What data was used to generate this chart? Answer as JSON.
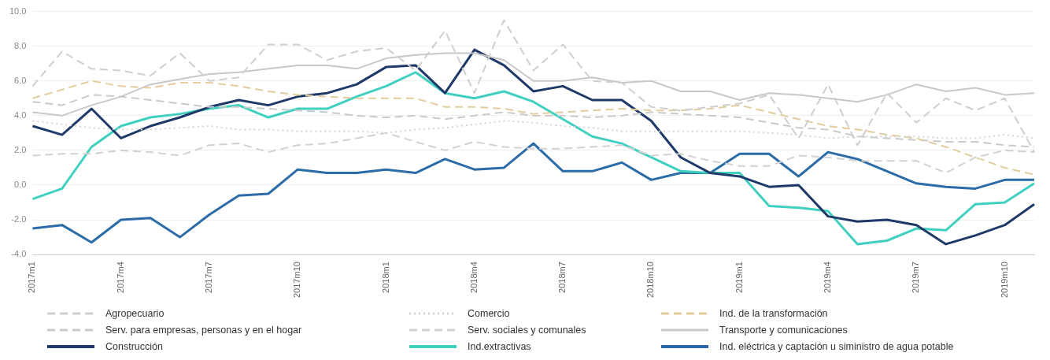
{
  "chart_data": {
    "type": "line",
    "categories": [
      "2017m1",
      null,
      null,
      "2017m4",
      null,
      null,
      "2017m7",
      null,
      null,
      "2017m10",
      null,
      null,
      "2018m1",
      null,
      null,
      "2018m4",
      null,
      null,
      "2018m7",
      null,
      null,
      "2018m10",
      null,
      null,
      "2019m1",
      null,
      null,
      "2019m4",
      null,
      null,
      "2019m7",
      null,
      null,
      "2019m10",
      null
    ],
    "ylim": [
      -4,
      10
    ],
    "yticks": [
      {
        "value": -4,
        "label": "-4.0"
      },
      {
        "value": -2,
        "label": "-2.0"
      },
      {
        "value": 0,
        "label": "0.0"
      },
      {
        "value": 2,
        "label": "2.0"
      },
      {
        "value": 4,
        "label": "4.0"
      },
      {
        "value": 6,
        "label": "6.0"
      },
      {
        "value": 8,
        "label": "8.0"
      },
      {
        "value": 10,
        "label": "10.0"
      }
    ],
    "grid": "y",
    "legend": "bottom",
    "marker": "none",
    "series": [
      {
        "name": "Agropecuario",
        "color": "#cfcfcf",
        "line_style": "dashed",
        "values": [
          5.7,
          7.7,
          6.7,
          6.6,
          6.3,
          7.6,
          6.0,
          6.2,
          8.1,
          8.1,
          7.2,
          7.7,
          7.9,
          6.6,
          8.9,
          5.3,
          9.5,
          6.6,
          8.1,
          6.0,
          5.9,
          4.5,
          4.3,
          4.5,
          4.7,
          5.2,
          2.7,
          5.8,
          2.3,
          5.3,
          3.6,
          5.0,
          4.3,
          5.0,
          1.9
        ]
      },
      {
        "name": "Comercio",
        "color": "#d4d4dc",
        "line_style": "dotted",
        "values": [
          3.7,
          3.5,
          3.3,
          3.2,
          3.2,
          3.3,
          3.4,
          3.2,
          3.2,
          3.1,
          3.1,
          3.1,
          3.0,
          3.2,
          3.3,
          3.5,
          3.7,
          3.6,
          3.4,
          3.3,
          3.1,
          3.1,
          3.1,
          3.1,
          3.1,
          3.0,
          2.9,
          2.7,
          2.8,
          2.8,
          2.8,
          2.7,
          2.7,
          2.9,
          2.7
        ]
      },
      {
        "name": "Ind. de la transformación",
        "color": "#e3cc9e",
        "line_style": "dashed",
        "values": [
          5.0,
          5.5,
          6.0,
          5.7,
          5.6,
          5.9,
          5.9,
          5.7,
          5.4,
          5.2,
          5.1,
          5.0,
          5.0,
          5.0,
          4.5,
          4.5,
          4.4,
          4.1,
          4.2,
          4.3,
          4.4,
          4.3,
          4.3,
          4.4,
          4.6,
          4.2,
          3.8,
          3.4,
          3.2,
          2.9,
          2.7,
          2.2,
          1.6,
          1.0,
          0.6
        ]
      },
      {
        "name": "Serv. para empresas, personas y en el hogar",
        "color": "#cacaca",
        "line_style": "dashed",
        "values": [
          4.8,
          4.6,
          5.2,
          5.1,
          4.9,
          4.7,
          4.5,
          4.5,
          4.4,
          4.3,
          4.2,
          4.0,
          3.9,
          4.0,
          3.8,
          4.0,
          4.2,
          4.0,
          4.0,
          3.9,
          4.0,
          4.2,
          4.1,
          4.0,
          3.9,
          3.6,
          3.3,
          3.2,
          2.8,
          2.7,
          2.6,
          2.5,
          2.5,
          2.3,
          2.2
        ]
      },
      {
        "name": "Serv. sociales y comunales",
        "color": "#d2d2d2",
        "line_style": "dashed",
        "values": [
          1.7,
          1.8,
          1.8,
          2.0,
          1.9,
          1.7,
          2.3,
          2.4,
          1.9,
          2.3,
          2.4,
          2.7,
          3.0,
          2.5,
          2.0,
          2.5,
          2.2,
          2.1,
          2.1,
          2.2,
          2.3,
          1.7,
          1.8,
          1.4,
          1.1,
          1.1,
          1.7,
          1.6,
          1.4,
          1.4,
          1.4,
          0.7,
          1.6,
          2.0,
          1.9
        ]
      },
      {
        "name": "Transporte y comunicaciones",
        "color": "#c8c8c8",
        "line_style": "solid",
        "values": [
          4.2,
          4.0,
          4.6,
          5.1,
          5.8,
          6.1,
          6.4,
          6.5,
          6.7,
          6.9,
          6.9,
          6.7,
          7.3,
          7.5,
          7.6,
          7.6,
          7.2,
          6.0,
          6.0,
          6.2,
          5.9,
          6.0,
          5.4,
          5.4,
          4.9,
          5.3,
          5.2,
          5.0,
          4.8,
          5.2,
          5.8,
          5.4,
          5.6,
          5.2,
          5.3
        ]
      },
      {
        "name": "Construcción",
        "color": "#1f3a68",
        "line_style": "solid",
        "values": [
          3.4,
          2.9,
          4.4,
          2.7,
          3.4,
          3.9,
          4.5,
          4.9,
          4.6,
          5.1,
          5.3,
          5.8,
          6.8,
          6.9,
          5.3,
          7.8,
          6.9,
          5.4,
          5.7,
          4.9,
          4.9,
          3.7,
          1.6,
          0.7,
          0.5,
          -0.1,
          0.0,
          -1.8,
          -2.1,
          -2.0,
          -2.3,
          -3.4,
          -2.9,
          -2.3,
          -1.1
        ]
      },
      {
        "name": "Ind.extractivas",
        "color": "#40d0c0",
        "line_style": "solid",
        "values": [
          -0.8,
          -0.2,
          2.2,
          3.4,
          3.9,
          4.1,
          4.4,
          4.6,
          3.9,
          4.4,
          4.4,
          5.1,
          5.7,
          6.5,
          5.3,
          5.0,
          5.4,
          4.8,
          3.8,
          2.8,
          2.4,
          1.6,
          0.8,
          0.7,
          0.7,
          -1.2,
          -1.3,
          -1.5,
          -3.4,
          -3.2,
          -2.5,
          -2.6,
          -1.1,
          -1.0,
          0.1
        ]
      },
      {
        "name": "Ind. eléctrica y captación u siministro de agua potable",
        "color": "#2b6ca8",
        "line_style": "solid",
        "values": [
          -2.5,
          -2.3,
          -3.3,
          -2.0,
          -1.9,
          -3.0,
          -1.7,
          -0.6,
          -0.5,
          0.9,
          0.7,
          0.7,
          0.9,
          0.7,
          1.5,
          0.9,
          1.0,
          2.4,
          0.8,
          0.8,
          1.3,
          0.3,
          0.7,
          0.7,
          1.8,
          1.8,
          0.5,
          1.9,
          1.5,
          0.8,
          0.1,
          -0.1,
          -0.2,
          0.3,
          0.3
        ]
      }
    ]
  }
}
